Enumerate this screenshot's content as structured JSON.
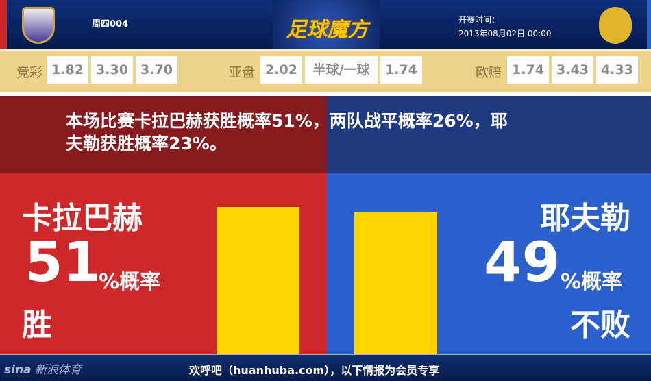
{
  "header": {
    "match_no": "周四004",
    "logo_text": "足球魔方",
    "kickoff_label": "开赛时间：",
    "kickoff_time": "2013年08月02日 00:00"
  },
  "odds": {
    "jingcai": {
      "label": "竞彩",
      "values": [
        "1.82",
        "3.30",
        "3.70"
      ]
    },
    "yapan": {
      "label": "亚盘",
      "values": [
        "2.02",
        "半球/一球",
        "1.74"
      ]
    },
    "oupei": {
      "label": "欧赔",
      "values": [
        "1.74",
        "3.43",
        "4.33"
      ]
    }
  },
  "summary": {
    "line1": "本场比赛卡拉巴赫获胜概率51%，两队战平概率26%，耶",
    "line2": "夫勒获胜概率23%。"
  },
  "home": {
    "team": "卡拉巴赫",
    "pct": "51",
    "pct_suffix": "%概率",
    "outcome": "胜",
    "value": 51
  },
  "away": {
    "team": "耶夫勒",
    "pct": "49",
    "pct_suffix": "%概率",
    "outcome": "不败",
    "value": 49
  },
  "colors": {
    "home": "#cf282b",
    "away": "#2b5fcb",
    "bar": "#ffd400"
  },
  "footer": {
    "brand": "新浪体育",
    "text": "欢呼吧（huanhuba.com），以下情报为会员专享"
  }
}
